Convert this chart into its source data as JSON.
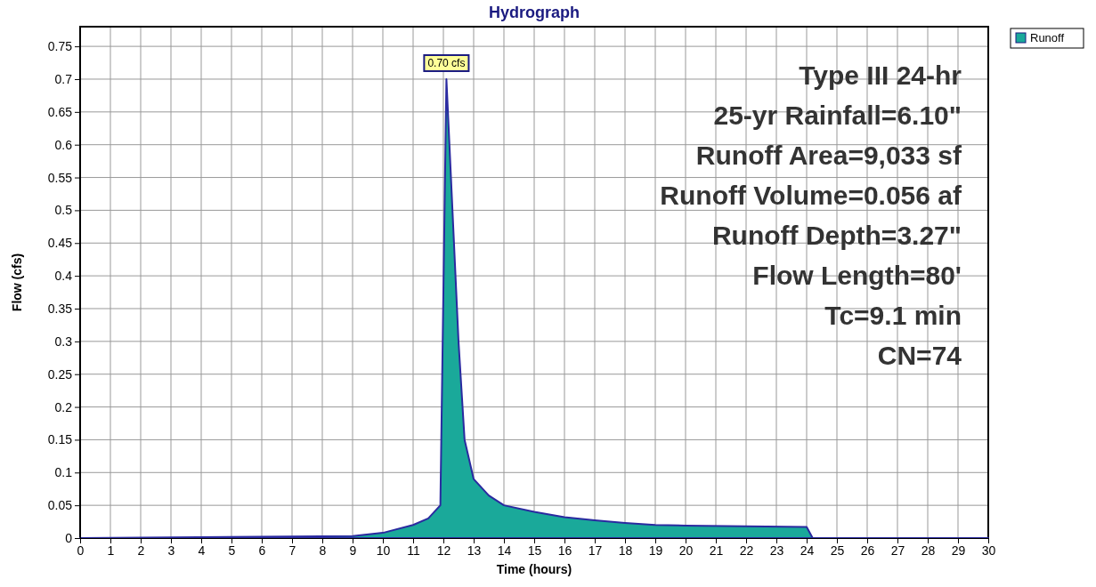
{
  "chart_data": {
    "type": "area",
    "title": "Hydrograph",
    "xlabel": "Time  (hours)",
    "ylabel": "Flow  (cfs)",
    "xlim": [
      0,
      30
    ],
    "xticks": [
      0,
      1,
      2,
      3,
      4,
      5,
      6,
      7,
      8,
      9,
      10,
      11,
      12,
      13,
      14,
      15,
      16,
      17,
      18,
      19,
      20,
      21,
      22,
      23,
      24,
      25,
      26,
      27,
      28,
      29,
      30
    ],
    "ylim": [
      0,
      0.78
    ],
    "yticks": [
      0,
      0.05,
      0.1,
      0.15,
      0.2,
      0.25,
      0.3,
      0.35,
      0.4,
      0.45,
      0.5,
      0.55,
      0.6,
      0.65,
      0.7,
      0.75
    ],
    "grid": true,
    "legend": "top right",
    "series": [
      {
        "name": "Runoff",
        "color": "#1aa99a",
        "x": [
          0,
          9,
          10,
          11,
          11.5,
          11.9,
          12.1,
          12.3,
          12.5,
          12.7,
          13,
          13.5,
          14,
          15,
          16,
          17,
          18,
          19,
          20,
          22,
          24,
          24.2,
          30
        ],
        "values": [
          0,
          0.003,
          0.008,
          0.02,
          0.03,
          0.05,
          0.7,
          0.5,
          0.3,
          0.15,
          0.09,
          0.065,
          0.05,
          0.04,
          0.032,
          0.027,
          0.023,
          0.02,
          0.019,
          0.018,
          0.017,
          0,
          0
        ]
      }
    ],
    "annotations": [
      {
        "text": "0.70 cfs",
        "x": 12.1,
        "y": 0.7
      },
      "Type III 24-hr",
      "25-yr Rainfall=6.10\"",
      "Runoff Area=9,033 sf",
      "Runoff Volume=0.056 af",
      "Runoff Depth=3.27\"",
      "Flow Length=80'",
      "Tc=9.1 min",
      "CN=74"
    ]
  }
}
